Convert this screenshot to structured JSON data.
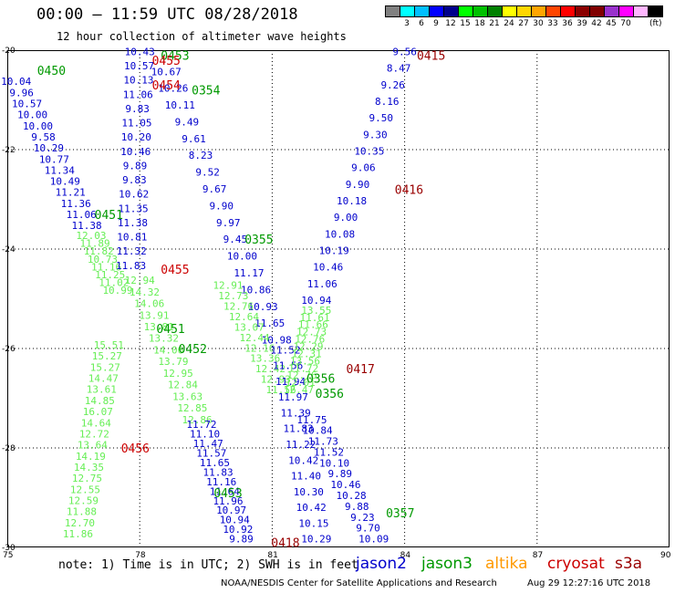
{
  "header": {
    "title": "00:00 – 11:59 UTC 08/28/2018",
    "subtitle": "12 hour collection of altimeter wave heights"
  },
  "colorbar": {
    "units": "(ft)",
    "colors": [
      "#808080",
      "#00ffff",
      "#00bfff",
      "#0000ff",
      "#00008b",
      "#00ff00",
      "#00c000",
      "#008000",
      "#ffff00",
      "#ffd700",
      "#ffa500",
      "#ff4500",
      "#ff0000",
      "#8b0000",
      "#800000",
      "#9932cc",
      "#ff00ff",
      "#ffb6ff",
      "#000000"
    ],
    "labels": [
      "3",
      "6",
      "9",
      "12",
      "15",
      "18",
      "21",
      "24",
      "27",
      "30",
      "33",
      "36",
      "39",
      "42",
      "45",
      "70"
    ]
  },
  "map": {
    "lat_labels": [
      "-20",
      "-22",
      "-24",
      "-26",
      "-28",
      "-30"
    ],
    "lon_labels": [
      "75",
      "78",
      "81",
      "84",
      "87",
      "90"
    ],
    "lat_range": [
      -30,
      -20
    ],
    "lon_range": [
      75,
      90
    ],
    "grid": "dotted"
  },
  "legend": {
    "note": "note: 1) Time is in UTC; 2) SWH is in feet",
    "satellites": [
      {
        "name": "jason2",
        "color": "#0000cc"
      },
      {
        "name": "jason3",
        "color": "#009900"
      },
      {
        "name": "altika",
        "color": "#ff9900"
      },
      {
        "name": "cryosat",
        "color": "#cc0000"
      },
      {
        "name": "s3a",
        "color": "#990000"
      }
    ]
  },
  "footer": {
    "credit": "NOAA/NESDIS Center for Satellite Applications and Research",
    "stamp": "Aug 29 12:27:16 UTC 2018"
  },
  "tracks": [
    {
      "id": "a",
      "color": "#0000cc",
      "lon": [
        75.2,
        76.8
      ],
      "lat": [
        -20.7,
        -23.6
      ],
      "values": [
        "10.04",
        "9.96",
        "10.57",
        "10.00",
        "10.00",
        "9.58",
        "10.29",
        "10.77",
        "11.34",
        "10.49",
        "11.21",
        "11.36",
        "11.06",
        "11.38"
      ]
    },
    {
      "id": "b",
      "color": "#66ee55",
      "lon": [
        76.9,
        77.5
      ],
      "lat": [
        -23.8,
        -24.9
      ],
      "values": [
        "12.03",
        "11.89",
        "11.82",
        "10.73",
        "11.16",
        "11.25",
        "11.02",
        "10.99"
      ]
    },
    {
      "id": "c",
      "color": "#66ee55",
      "lon": [
        77.3,
        76.6
      ],
      "lat": [
        -26.0,
        -29.8
      ],
      "values": [
        "15.51",
        "15.27",
        "15.27",
        "14.47",
        "13.61",
        "14.85",
        "16.07",
        "14.64",
        "12.72",
        "13.64",
        "14.19",
        "14.35",
        "12.75",
        "12.55",
        "12.59",
        "11.88",
        "12.70",
        "11.86"
      ]
    },
    {
      "id": "d",
      "color": "#0000cc",
      "lon": [
        78.0,
        77.8
      ],
      "lat": [
        -20.1,
        -24.4
      ],
      "values": [
        "10.43",
        "10.57",
        "10.13",
        "11.06",
        "9.83",
        "11.05",
        "10.20",
        "10.46",
        "9.89",
        "9.83",
        "10.62",
        "11.35",
        "11.38",
        "10.81",
        "11.32",
        "11.83"
      ]
    },
    {
      "id": "e",
      "color": "#0000cc",
      "lon": [
        78.6,
        81.1
      ],
      "lat": [
        -20.5,
        -25.9
      ],
      "values": [
        "10.67",
        "10.26",
        "10.11",
        "9.49",
        "9.61",
        "8.23",
        "9.52",
        "9.67",
        "9.90",
        "9.97",
        "9.45",
        "10.00",
        "11.17",
        "10.86",
        "10.93",
        "11.65",
        "10.98"
      ]
    },
    {
      "id": "f",
      "color": "#66ee55",
      "lon": [
        80.0,
        81.2
      ],
      "lat": [
        -24.8,
        -26.9
      ],
      "values": [
        "12.91",
        "12.73",
        "12.76",
        "12.64",
        "13.07",
        "12.44",
        "12.16",
        "13.36",
        "12.42",
        "12.93",
        "11.56"
      ]
    },
    {
      "id": "g",
      "color": "#0000cc",
      "lon": [
        81.3,
        82.0
      ],
      "lat": [
        -26.1,
        -29.9
      ],
      "values": [
        "11.52",
        "11.56",
        "11.94",
        "11.97",
        "11.39",
        "11.83",
        "11.22",
        "10.42",
        "11.40",
        "10.30",
        "10.42",
        "10.15",
        "10.29"
      ]
    },
    {
      "id": "h",
      "color": "#66ee55",
      "lon": [
        78.0,
        79.3
      ],
      "lat": [
        -24.7,
        -27.5
      ],
      "values": [
        "12.94",
        "14.32",
        "14.06",
        "13.91",
        "13.81",
        "13.32",
        "14.06",
        "13.79",
        "12.95",
        "12.84",
        "13.63",
        "12.85",
        "12.86"
      ]
    },
    {
      "id": "i",
      "color": "#0000cc",
      "lon": [
        79.4,
        80.3
      ],
      "lat": [
        -27.6,
        -29.9
      ],
      "values": [
        "11.72",
        "11.10",
        "11.47",
        "11.57",
        "11.65",
        "11.83",
        "11.16",
        "11.64",
        "11.96",
        "10.97",
        "10.94",
        "10.92",
        "9.89"
      ]
    },
    {
      "id": "j",
      "color": "#0000cc",
      "lon": [
        84.0,
        82.0
      ],
      "lat": [
        -20.1,
        -25.1
      ],
      "values": [
        "9.56",
        "8.47",
        "9.26",
        "8.16",
        "9.50",
        "9.30",
        "10.35",
        "9.06",
        "9.90",
        "10.18",
        "9.00",
        "10.08",
        "10.19",
        "10.46",
        "11.06",
        "10.94"
      ]
    },
    {
      "id": "k",
      "color": "#66ee55",
      "lon": [
        82.0,
        81.6
      ],
      "lat": [
        -25.3,
        -26.9
      ],
      "values": [
        "13.55",
        "11.61",
        "11.66",
        "12.73",
        "12.76",
        "12.29",
        "12.31",
        "13.56",
        "11.72",
        "12.76",
        "12.01",
        "12.47"
      ]
    },
    {
      "id": "l",
      "color": "#0000cc",
      "lon": [
        81.9,
        83.3
      ],
      "lat": [
        -27.5,
        -29.9
      ],
      "values": [
        "11.75",
        "10.84",
        "11.73",
        "11.52",
        "10.10",
        "9.89",
        "10.46",
        "10.28",
        "9.88",
        "9.23",
        "9.70",
        "10.09"
      ]
    }
  ],
  "passes": [
    {
      "label": "0450",
      "color": "#009900",
      "lon": 76.0,
      "lat": -20.4
    },
    {
      "label": "0453",
      "color": "#009900",
      "lon": 78.8,
      "lat": -20.1
    },
    {
      "label": "0455",
      "color": "#cc0000",
      "lon": 78.6,
      "lat": -20.2
    },
    {
      "label": "0454",
      "color": "#cc0000",
      "lon": 78.6,
      "lat": -20.7
    },
    {
      "label": "0354",
      "color": "#009900",
      "lon": 79.5,
      "lat": -20.8
    },
    {
      "label": "0415",
      "color": "#990000",
      "lon": 84.6,
      "lat": -20.1
    },
    {
      "label": "0416",
      "color": "#990000",
      "lon": 84.1,
      "lat": -22.8
    },
    {
      "label": "0451",
      "color": "#009900",
      "lon": 77.3,
      "lat": -23.3
    },
    {
      "label": "0355",
      "color": "#009900",
      "lon": 80.7,
      "lat": -23.8
    },
    {
      "label": "0455",
      "color": "#cc0000",
      "lon": 78.8,
      "lat": -24.4
    },
    {
      "label": "0451",
      "color": "#009900",
      "lon": 78.7,
      "lat": -25.6
    },
    {
      "label": "0452",
      "color": "#009900",
      "lon": 79.2,
      "lat": -26.0
    },
    {
      "label": "0417",
      "color": "#990000",
      "lon": 83.0,
      "lat": -26.4
    },
    {
      "label": "0356",
      "color": "#009900",
      "lon": 82.1,
      "lat": -26.6
    },
    {
      "label": "0356",
      "color": "#009900",
      "lon": 82.3,
      "lat": -26.9
    },
    {
      "label": "0456",
      "color": "#cc0000",
      "lon": 77.9,
      "lat": -28.0
    },
    {
      "label": "0453",
      "color": "#009900",
      "lon": 80.0,
      "lat": -28.9
    },
    {
      "label": "0357",
      "color": "#009900",
      "lon": 83.9,
      "lat": -29.3
    },
    {
      "label": "0418",
      "color": "#990000",
      "lon": 81.3,
      "lat": -29.9
    }
  ]
}
